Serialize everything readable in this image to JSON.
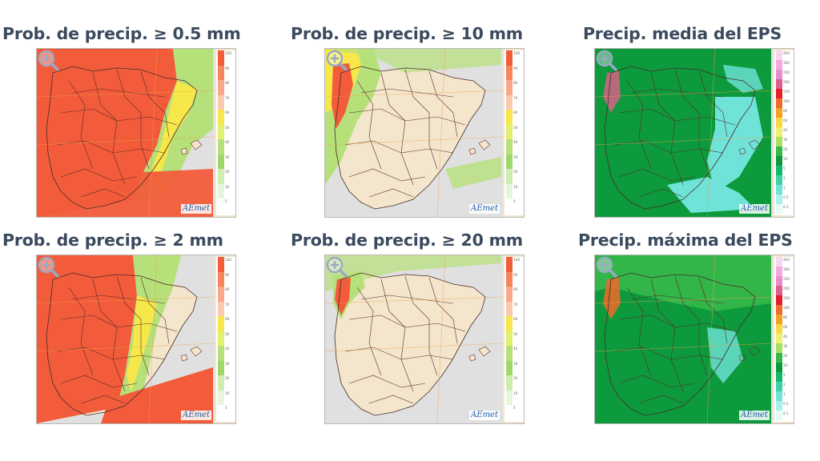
{
  "panels": [
    {
      "title": "Prob. de precip.  ≥ 0.5 mm",
      "scheme": "prob",
      "coverage": "very-high",
      "legend": [
        "100",
        "90",
        "80",
        "70",
        "60",
        "50",
        "40",
        "30",
        "20",
        "10",
        "5"
      ],
      "zoom_icon": "zoom-in-icon",
      "logo": "AEmet"
    },
    {
      "title": "Prob. de precip.  ≥ 10 mm",
      "scheme": "prob",
      "coverage": "northwest",
      "legend": [
        "100",
        "90",
        "80",
        "70",
        "60",
        "50",
        "40",
        "30",
        "20",
        "10",
        "5"
      ],
      "zoom_icon": "zoom-in-icon",
      "logo": "AEmet"
    },
    {
      "title": "Precip. media del EPS",
      "scheme": "amount",
      "coverage": "mean",
      "legend": [
        "400",
        "300",
        "250",
        "200",
        "150",
        "100",
        "80",
        "60",
        "40",
        "30",
        "20",
        "10",
        "5",
        "2",
        "1",
        "0.5",
        "0.1"
      ],
      "zoom_icon": "zoom-in-icon",
      "logo": "AEmet"
    },
    {
      "title": "Prob. de precip.  ≥ 2 mm",
      "scheme": "prob",
      "coverage": "high",
      "legend": [
        "100",
        "90",
        "80",
        "70",
        "60",
        "50",
        "40",
        "30",
        "20",
        "10",
        "5"
      ],
      "zoom_icon": "zoom-in-icon",
      "logo": "AEmet"
    },
    {
      "title": "Prob. de precip.  ≥ 20 mm",
      "scheme": "prob",
      "coverage": "galicia",
      "legend": [
        "100",
        "90",
        "80",
        "70",
        "60",
        "50",
        "40",
        "30",
        "20",
        "10",
        "5"
      ],
      "zoom_icon": "zoom-in-icon",
      "logo": "AEmet"
    },
    {
      "title": "Precip. máxima del EPS",
      "scheme": "amount",
      "coverage": "max",
      "legend": [
        "400",
        "300",
        "250",
        "200",
        "150",
        "100",
        "80",
        "60",
        "40",
        "30",
        "20",
        "10",
        "5",
        "2",
        "1",
        "0.5",
        "0.1"
      ],
      "zoom_icon": "zoom-in-icon",
      "logo": "AEmet"
    }
  ],
  "colors": {
    "title": "#3b4a5e",
    "land": "#f3e6cc",
    "sea": "#e0e0e0",
    "prob_high": "#f25c3a",
    "prob_mid": "#f6e84a",
    "prob_low": "#b6e07a",
    "amount_high": "#0c9a3c",
    "amount_low": "#6fe3d8"
  }
}
